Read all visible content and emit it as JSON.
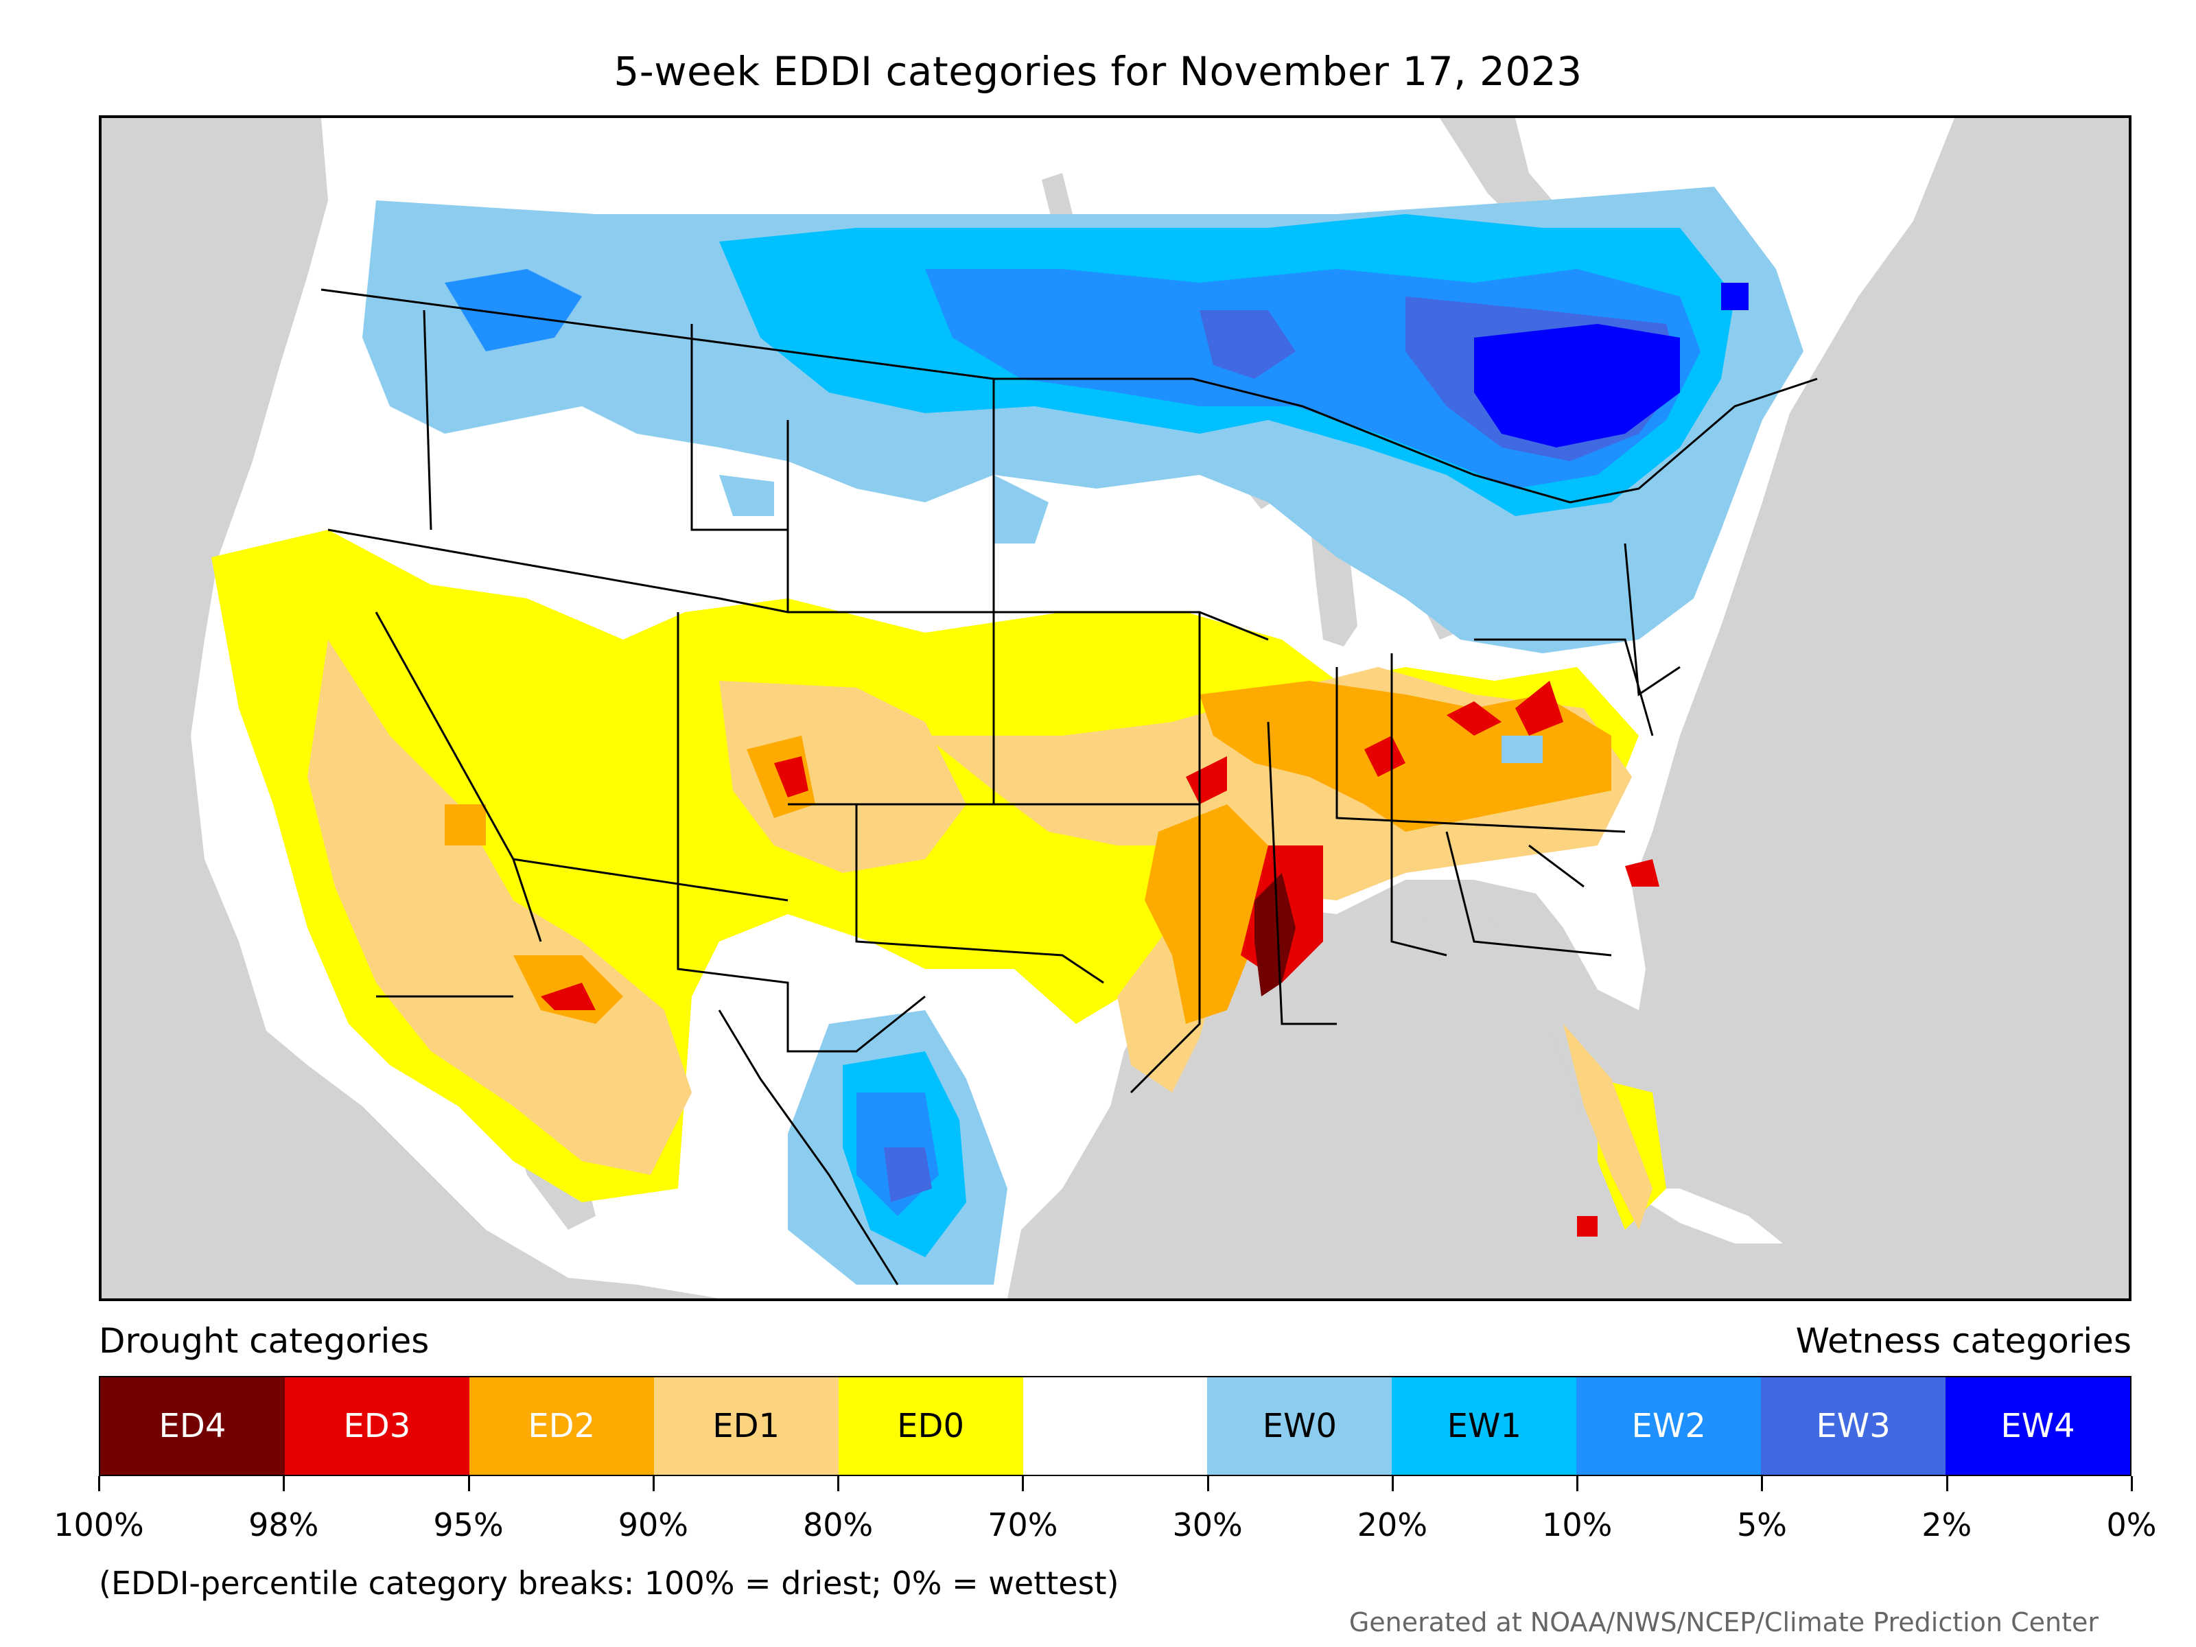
{
  "title": "5-week EDDI categories for November 17, 2023",
  "legend": {
    "left_heading": "Drought categories",
    "right_heading": "Wetness categories",
    "categories": [
      {
        "label": "ED4",
        "color": "#730000",
        "text_color": "#ffffff"
      },
      {
        "label": "ED3",
        "color": "#e60000",
        "text_color": "#ffffff"
      },
      {
        "label": "ED2",
        "color": "#ffaa00",
        "text_color": "#ffffff"
      },
      {
        "label": "ED1",
        "color": "#fcd37f",
        "text_color": "#000000"
      },
      {
        "label": "ED0",
        "color": "#ffff00",
        "text_color": "#000000"
      },
      {
        "label": "",
        "color": "#ffffff",
        "text_color": "#000000"
      },
      {
        "label": "EW0",
        "color": "#8ccdef",
        "text_color": "#000000"
      },
      {
        "label": "EW1",
        "color": "#00c0ff",
        "text_color": "#000000"
      },
      {
        "label": "EW2",
        "color": "#1e90ff",
        "text_color": "#ffffff"
      },
      {
        "label": "EW3",
        "color": "#4169e1",
        "text_color": "#ffffff"
      },
      {
        "label": "EW4",
        "color": "#0000ff",
        "text_color": "#ffffff"
      }
    ],
    "tick_labels": [
      "100%",
      "98%",
      "95%",
      "90%",
      "80%",
      "70%",
      "30%",
      "20%",
      "10%",
      "5%",
      "2%",
      "0%"
    ]
  },
  "note": "(EDDI-percentile category breaks: 100% = driest; 0% = wettest)",
  "credit": "Generated at NOAA/NWS/NCEP/Climate Prediction Center"
}
